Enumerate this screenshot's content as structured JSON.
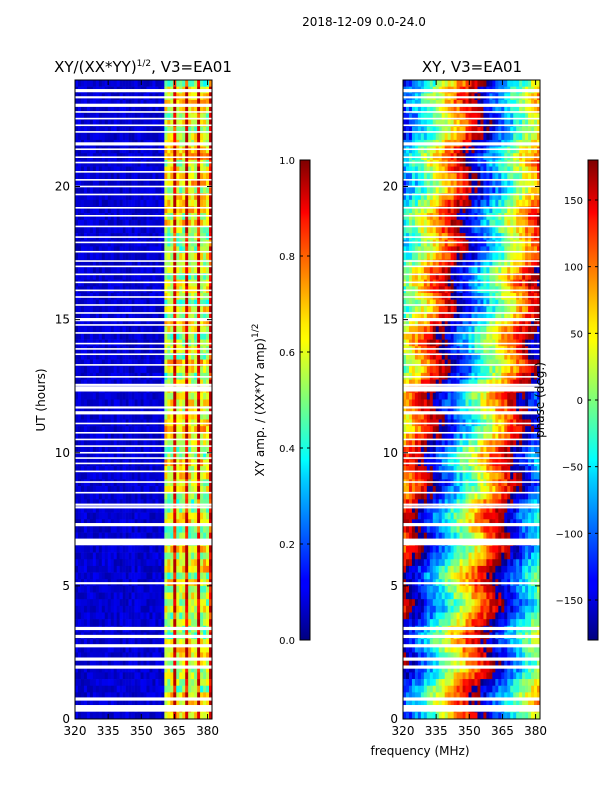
{
  "suptitle": "2018-12-09 0.0-24.0",
  "colors": {
    "axis": "#000000",
    "gap": "#ffffff"
  },
  "chart_data": [
    {
      "type": "heatmap",
      "name": "amplitude",
      "title_main": "XY/(XX*YY)",
      "title_sup": "1/2",
      "title_tail": ", V3=EA01",
      "xlabel": "",
      "ylabel": "UT (hours)",
      "xlim": [
        320,
        382
      ],
      "ylim": [
        0,
        24
      ],
      "xticks": [
        320,
        335,
        350,
        365,
        380
      ],
      "yticks": [
        0,
        5,
        10,
        15,
        20
      ],
      "colorbar": {
        "label": "XY amp. / (XX*YY amp)",
        "label_sup": "1/2",
        "vmin": 0.0,
        "vmax": 1.0,
        "ticks": [
          "0.0",
          "0.2",
          "0.4",
          "0.6",
          "0.8",
          "1.0"
        ],
        "tick_values": [
          0.0,
          0.2,
          0.4,
          0.6,
          0.8,
          1.0
        ],
        "colormap": "jet"
      },
      "description": "Mostly near 0.05 below 360 MHz; 360-384 MHz band shows values 0.3-0.9 with striped channel structure"
    },
    {
      "type": "heatmap",
      "name": "phase",
      "title_main": "XY, V3=EA01",
      "xlabel": "frequency (MHz)",
      "ylabel": "",
      "xlim": [
        320,
        382
      ],
      "ylim": [
        0,
        24
      ],
      "xticks": [
        320,
        335,
        350,
        365,
        380
      ],
      "yticks": [
        0,
        5,
        10,
        15,
        20
      ],
      "colorbar": {
        "label": "phase (deg.)",
        "vmin": -180,
        "vmax": 180,
        "ticks": [
          "−150",
          "−100",
          "−50",
          "0",
          "50",
          "100",
          "150"
        ],
        "tick_values": [
          -150,
          -100,
          -50,
          0,
          50,
          100,
          150
        ],
        "colormap": "jet"
      },
      "description": "Phase wraps across frequency producing vertical color stripes over the full band"
    }
  ],
  "gap_rows_hours": [
    0.4,
    0.75,
    1.95,
    2.25,
    2.75,
    3.1,
    3.4,
    5.1,
    6.65,
    7.3,
    7.95,
    8.05,
    8.5,
    8.9,
    9.3,
    9.6,
    9.8,
    10.0,
    10.25,
    10.5,
    10.75,
    11.1,
    11.5,
    11.7,
    12.4,
    12.55,
    12.85,
    13.3,
    13.7,
    13.9,
    14.1,
    14.5,
    14.8,
    15.0,
    15.25,
    15.55,
    15.85,
    16.1,
    16.4,
    16.7,
    17.0,
    17.2,
    17.55,
    17.9,
    18.1,
    18.5,
    18.9,
    19.2,
    19.7,
    20.0,
    20.25,
    20.55,
    20.9,
    21.1,
    21.4,
    21.6,
    22.05,
    22.3,
    22.55,
    22.8,
    23.05,
    23.35,
    23.6
  ],
  "gap_widths_hours": [
    0.25,
    0.12,
    0.12,
    0.12,
    0.12,
    0.12,
    0.12,
    0.08,
    0.25,
    0.12,
    0.08,
    0.08,
    0.06,
    0.06,
    0.06,
    0.06,
    0.06,
    0.06,
    0.06,
    0.06,
    0.06,
    0.06,
    0.12,
    0.08,
    0.2,
    0.08,
    0.06,
    0.06,
    0.06,
    0.06,
    0.06,
    0.06,
    0.06,
    0.12,
    0.06,
    0.06,
    0.06,
    0.06,
    0.06,
    0.06,
    0.06,
    0.06,
    0.06,
    0.06,
    0.06,
    0.06,
    0.06,
    0.06,
    0.06,
    0.06,
    0.06,
    0.06,
    0.06,
    0.06,
    0.06,
    0.12,
    0.06,
    0.06,
    0.06,
    0.06,
    0.12,
    0.08,
    0.12
  ]
}
